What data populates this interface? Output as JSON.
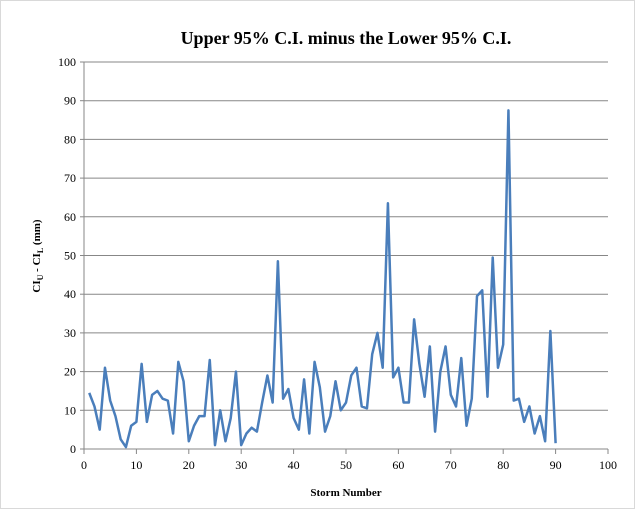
{
  "chart_data": {
    "type": "line",
    "title": "Upper 95% C.I. minus the Lower 95% C.I.",
    "x_label": "Storm Number",
    "y_label": [
      "CI",
      "U",
      " - CI",
      "L",
      " (mm)"
    ],
    "x": [
      1,
      2,
      3,
      4,
      5,
      6,
      7,
      8,
      9,
      10,
      11,
      12,
      13,
      14,
      15,
      16,
      17,
      18,
      19,
      20,
      21,
      22,
      23,
      24,
      25,
      26,
      27,
      28,
      29,
      30,
      31,
      32,
      33,
      34,
      35,
      36,
      37,
      38,
      39,
      40,
      41,
      42,
      43,
      44,
      45,
      46,
      47,
      48,
      49,
      50,
      51,
      52,
      53,
      54,
      55,
      56,
      57,
      58,
      59,
      60,
      61,
      62,
      63,
      64,
      65,
      66,
      67,
      68,
      69,
      70,
      71,
      72,
      73,
      74,
      75,
      76,
      77,
      78,
      79,
      80,
      81,
      82,
      83,
      84,
      85,
      86,
      87,
      88,
      89,
      90
    ],
    "series": [
      {
        "color": "#4a7ebb",
        "values": [
          14.5,
          11,
          5,
          21,
          12.5,
          8.5,
          2.5,
          0.5,
          6,
          7,
          22,
          7,
          14,
          15,
          13,
          12.5,
          4,
          22.5,
          17.5,
          2,
          6,
          8.5,
          8.5,
          23,
          1,
          10,
          2,
          8,
          20,
          1,
          4,
          5.5,
          4.5,
          12,
          19,
          12,
          48.5,
          13,
          15.5,
          8,
          5,
          18,
          4,
          22.5,
          16,
          4.5,
          8.5,
          17.5,
          10,
          12,
          19,
          21,
          11,
          10.5,
          24.5,
          30,
          21,
          63.5,
          18.5,
          21,
          12,
          12,
          33.5,
          22,
          13.5,
          26.5,
          4.5,
          20,
          26.5,
          14,
          11,
          23.5,
          6,
          13,
          39.5,
          41,
          13.5,
          49.5,
          21,
          27,
          87.5,
          12.5,
          13,
          7,
          11,
          4,
          8.5,
          2,
          30.5,
          1.5
        ]
      }
    ],
    "xlim": [
      0,
      100
    ],
    "xticks": [
      0,
      10,
      20,
      30,
      40,
      50,
      60,
      70,
      80,
      90,
      100
    ],
    "ylim": [
      0,
      100
    ],
    "yticks": [
      0,
      10,
      20,
      30,
      40,
      50,
      60,
      70,
      80,
      90,
      100
    ],
    "grid": true
  }
}
